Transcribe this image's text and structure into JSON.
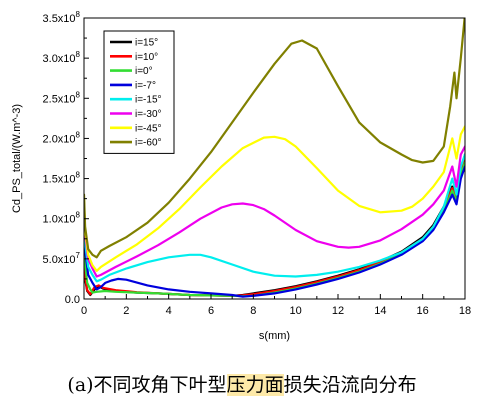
{
  "chart_data": {
    "type": "line",
    "xlabel": "s(mm)",
    "ylabel": "Cd_PS_total/(W.m^-3)",
    "xlim": [
      0,
      18
    ],
    "ylim": [
      0,
      350000000
    ],
    "x_ticks": [
      0,
      2,
      4,
      6,
      8,
      10,
      12,
      14,
      16,
      18
    ],
    "x_tick_labels": [
      "0",
      "2",
      "4",
      "6",
      "8",
      "10",
      "12",
      "14",
      "16",
      "18"
    ],
    "y_ticks": [
      0,
      50000000,
      100000000,
      150000000,
      200000000,
      250000000,
      300000000,
      350000000
    ],
    "y_tick_labels": [
      {
        "mant": "0.0",
        "exp": ""
      },
      {
        "mant": "5.0x10",
        "exp": "7"
      },
      {
        "mant": "1.0x10",
        "exp": "8"
      },
      {
        "mant": "1.5x10",
        "exp": "8"
      },
      {
        "mant": "2.0x10",
        "exp": "8"
      },
      {
        "mant": "2.5x10",
        "exp": "8"
      },
      {
        "mant": "3.0x10",
        "exp": "8"
      },
      {
        "mant": "3.5x10",
        "exp": "8"
      }
    ],
    "legend_position": "top-left",
    "grid": false,
    "series": [
      {
        "name": "i=15°",
        "color": "#000000",
        "x": [
          0,
          0.05,
          0.15,
          0.3,
          0.5,
          0.7,
          0.9,
          1.5,
          2.5,
          3.5,
          5,
          6,
          7,
          7.5,
          8,
          9,
          10,
          11,
          12,
          13,
          14,
          15,
          16,
          16.5,
          17,
          17.4,
          17.6,
          17.8,
          18
        ],
        "y": [
          40000000,
          25000000,
          10000000,
          5000000,
          12000000,
          16000000,
          13000000,
          10000000,
          8000000,
          7000000,
          5000000,
          4500000,
          4000000,
          5000000,
          7000000,
          11000000,
          16000000,
          22000000,
          29000000,
          37000000,
          47000000,
          59000000,
          77000000,
          92000000,
          115000000,
          140000000,
          128000000,
          160000000,
          180000000
        ]
      },
      {
        "name": "i=10°",
        "color": "#ff0000",
        "x": [
          0,
          0.05,
          0.15,
          0.3,
          0.5,
          0.7,
          0.9,
          1.5,
          2.5,
          3.5,
          5,
          6,
          7,
          7.5,
          8,
          9,
          10,
          11,
          12,
          13,
          14,
          15,
          16,
          16.5,
          17,
          17.4,
          17.6,
          17.8,
          18
        ],
        "y": [
          45000000,
          28000000,
          11000000,
          6000000,
          15000000,
          17000000,
          14000000,
          11000000,
          8500000,
          7000000,
          5000000,
          4500000,
          4000000,
          4500000,
          6000000,
          10000000,
          15000000,
          21000000,
          28000000,
          36000000,
          46000000,
          58000000,
          75000000,
          90000000,
          112000000,
          138000000,
          125000000,
          158000000,
          175000000
        ]
      },
      {
        "name": "i=0°",
        "color": "#33dd33",
        "x": [
          0,
          0.05,
          0.15,
          0.3,
          0.4,
          0.6,
          1,
          1.5,
          2.5,
          3.5,
          5,
          6,
          7,
          7.5,
          8,
          9,
          10,
          11,
          12,
          13,
          14,
          15,
          16,
          16.5,
          17,
          17.4,
          17.6,
          17.8,
          18
        ],
        "y": [
          75000000,
          45000000,
          20000000,
          12000000,
          8000000,
          9000000,
          10000000,
          9000000,
          8000000,
          7000000,
          5000000,
          4500000,
          4000000,
          3500000,
          4000000,
          8000000,
          13000000,
          19000000,
          26000000,
          34000000,
          44000000,
          56000000,
          73000000,
          88000000,
          110000000,
          135000000,
          122000000,
          155000000,
          170000000
        ]
      },
      {
        "name": "i=-7°",
        "color": "#0000dd",
        "x": [
          0,
          0.05,
          0.2,
          0.4,
          0.6,
          0.8,
          1,
          1.3,
          1.6,
          2,
          3,
          4,
          5,
          6,
          7,
          7.5,
          8,
          9,
          10,
          11,
          12,
          13,
          14,
          15,
          16,
          16.5,
          17,
          17.4,
          17.6,
          17.8,
          18
        ],
        "y": [
          95000000,
          60000000,
          30000000,
          20000000,
          12000000,
          15000000,
          20000000,
          23000000,
          25000000,
          24000000,
          17000000,
          12000000,
          9000000,
          7000000,
          5000000,
          3000000,
          4000000,
          7000000,
          12000000,
          18000000,
          25000000,
          33000000,
          43000000,
          55000000,
          72000000,
          86000000,
          108000000,
          130000000,
          118000000,
          150000000,
          165000000
        ]
      },
      {
        "name": "i=-15°",
        "color": "#00eeee",
        "x": [
          0,
          0.05,
          0.2,
          0.4,
          0.6,
          0.8,
          1.2,
          2,
          3,
          4,
          5,
          5.5,
          6,
          7,
          8,
          9,
          10,
          11,
          12,
          13,
          14,
          15,
          16,
          16.5,
          17,
          17.4,
          17.6,
          17.8,
          18
        ],
        "y": [
          110000000,
          70000000,
          40000000,
          30000000,
          22000000,
          24000000,
          30000000,
          38000000,
          46000000,
          52000000,
          55000000,
          55000000,
          52000000,
          43000000,
          34000000,
          29000000,
          28000000,
          30000000,
          34000000,
          40000000,
          48000000,
          58000000,
          75000000,
          90000000,
          115000000,
          150000000,
          130000000,
          165000000,
          180000000
        ]
      },
      {
        "name": "i=-30°",
        "color": "#ee00ee",
        "x": [
          0,
          0.05,
          0.2,
          0.4,
          0.6,
          0.8,
          1.5,
          2.5,
          3.5,
          4.5,
          5.5,
          6.5,
          7,
          7.5,
          8,
          8.5,
          9,
          10,
          11,
          12,
          12.5,
          13,
          14,
          15,
          16,
          16.5,
          17,
          17.4,
          17.6,
          17.8,
          18
        ],
        "y": [
          120000000,
          80000000,
          50000000,
          38000000,
          28000000,
          30000000,
          40000000,
          53000000,
          67000000,
          83000000,
          100000000,
          114000000,
          118000000,
          119000000,
          117000000,
          112000000,
          104000000,
          86000000,
          72000000,
          65000000,
          64000000,
          65000000,
          73000000,
          87000000,
          105000000,
          118000000,
          135000000,
          165000000,
          140000000,
          180000000,
          190000000
        ]
      },
      {
        "name": "i=-45°",
        "color": "#ffff00",
        "x": [
          0,
          0.05,
          0.2,
          0.4,
          0.6,
          0.8,
          1.5,
          2.5,
          3.5,
          4.5,
          5.5,
          6.5,
          7.5,
          8.5,
          9,
          9.5,
          10,
          11,
          12,
          13,
          14,
          15,
          15.5,
          16,
          16.5,
          17,
          17.4,
          17.6,
          17.8,
          18
        ],
        "y": [
          125000000,
          85000000,
          55000000,
          42000000,
          35000000,
          40000000,
          52000000,
          68000000,
          88000000,
          112000000,
          139000000,
          165000000,
          188000000,
          201000000,
          202000000,
          199000000,
          190000000,
          163000000,
          135000000,
          116000000,
          108000000,
          110000000,
          115000000,
          125000000,
          140000000,
          158000000,
          200000000,
          175000000,
          205000000,
          215000000
        ]
      },
      {
        "name": "i=-60°",
        "color": "#808000",
        "x": [
          0,
          0.05,
          0.2,
          0.4,
          0.6,
          0.8,
          1.2,
          2,
          3,
          4,
          5,
          6,
          7,
          8,
          9,
          9.8,
          10.3,
          11,
          12,
          13,
          14,
          15,
          15.5,
          16,
          16.5,
          17,
          17.3,
          17.5,
          17.6,
          17.8,
          18
        ],
        "y": [
          130000000,
          90000000,
          62000000,
          55000000,
          52000000,
          60000000,
          66000000,
          77000000,
          95000000,
          120000000,
          150000000,
          183000000,
          220000000,
          257000000,
          293000000,
          318000000,
          322000000,
          312000000,
          265000000,
          220000000,
          195000000,
          180000000,
          173000000,
          170000000,
          172000000,
          190000000,
          240000000,
          282000000,
          250000000,
          300000000,
          355000000
        ]
      }
    ]
  },
  "caption": {
    "prefix": "(a)不同攻角下叶型",
    "highlight": "压力面",
    "suffix": "损失沿流向分布"
  }
}
